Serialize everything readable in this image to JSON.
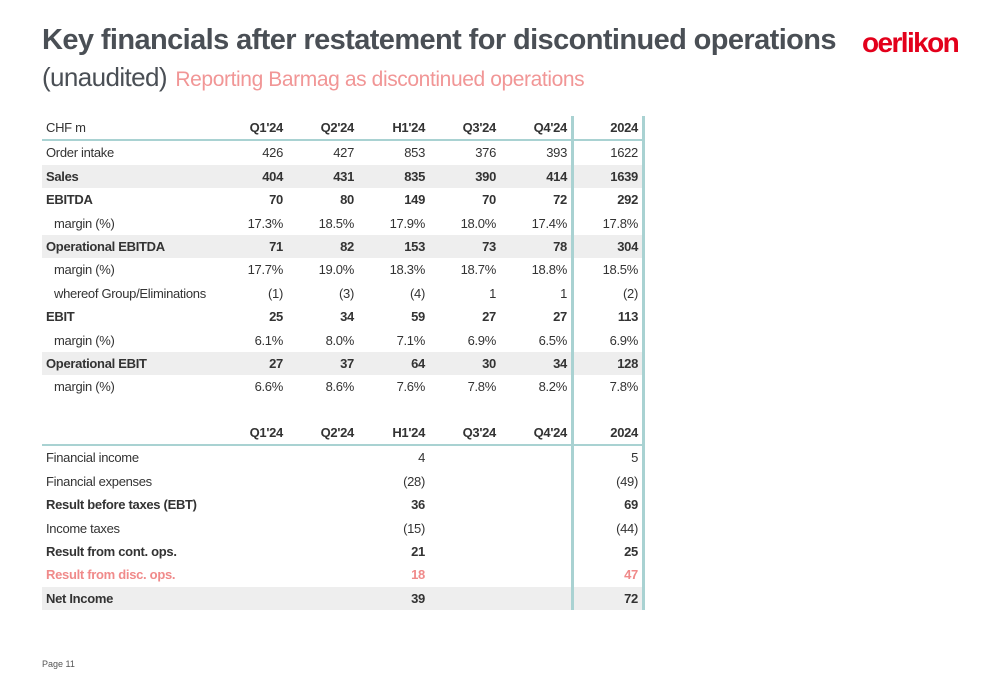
{
  "header": {
    "title": "Key financials after restatement for discontinued operations",
    "subtitle_main": "(unaudited)",
    "subtitle_accent": "Reporting Barmag as discontinued operations",
    "logo_text": "oerlikon"
  },
  "table1": {
    "columns": [
      "CHF m",
      "Q1'24",
      "Q2'24",
      "H1'24",
      "Q3'24",
      "Q4'24",
      "2024"
    ],
    "rows": [
      {
        "label": "Order intake",
        "values": [
          "426",
          "427",
          "853",
          "376",
          "393",
          "1622"
        ]
      },
      {
        "label": "Sales",
        "values": [
          "404",
          "431",
          "835",
          "390",
          "414",
          "1639"
        ]
      },
      {
        "label": "EBITDA",
        "values": [
          "70",
          "80",
          "149",
          "70",
          "72",
          "292"
        ]
      },
      {
        "label": "margin (%)",
        "values": [
          "17.3%",
          "18.5%",
          "17.9%",
          "18.0%",
          "17.4%",
          "17.8%"
        ]
      },
      {
        "label": "Operational EBITDA",
        "values": [
          "71",
          "82",
          "153",
          "73",
          "78",
          "304"
        ]
      },
      {
        "label": "margin (%)",
        "values": [
          "17.7%",
          "19.0%",
          "18.3%",
          "18.7%",
          "18.8%",
          "18.5%"
        ]
      },
      {
        "label": "whereof Group/Eliminations",
        "values": [
          "(1)",
          "(3)",
          "(4)",
          "1",
          "1",
          "(2)"
        ]
      },
      {
        "label": "EBIT",
        "values": [
          "25",
          "34",
          "59",
          "27",
          "27",
          "113"
        ]
      },
      {
        "label": "margin (%)",
        "values": [
          "6.1%",
          "8.0%",
          "7.1%",
          "6.9%",
          "6.5%",
          "6.9%"
        ]
      },
      {
        "label": "Operational EBIT",
        "values": [
          "27",
          "37",
          "64",
          "30",
          "34",
          "128"
        ]
      },
      {
        "label": "margin (%)",
        "values": [
          "6.6%",
          "8.6%",
          "7.6%",
          "7.8%",
          "8.2%",
          "7.8%"
        ]
      }
    ]
  },
  "table2": {
    "columns": [
      "",
      "Q1'24",
      "Q2'24",
      "H1'24",
      "Q3'24",
      "Q4'24",
      "2024"
    ],
    "rows": [
      {
        "label": "Financial income",
        "values": [
          "",
          "",
          "4",
          "",
          "",
          "5"
        ]
      },
      {
        "label": "Financial expenses",
        "values": [
          "",
          "",
          "(28)",
          "",
          "",
          "(49)"
        ]
      },
      {
        "label": "Result before taxes (EBT)",
        "values": [
          "",
          "",
          "36",
          "",
          "",
          "69"
        ]
      },
      {
        "label": "Income taxes",
        "values": [
          "",
          "",
          "(15)",
          "",
          "",
          "(44)"
        ]
      },
      {
        "label": "Result from cont. ops.",
        "values": [
          "",
          "",
          "21",
          "",
          "",
          "25"
        ]
      },
      {
        "label": "Result from disc. ops.",
        "values": [
          "",
          "",
          "18",
          "",
          "",
          "47"
        ]
      },
      {
        "label": "Net Income",
        "values": [
          "",
          "",
          "39",
          "",
          "",
          "72"
        ]
      }
    ]
  },
  "footer": {
    "page_label": "Page 11"
  },
  "colors": {
    "title": "#4a4f55",
    "accent": "#f19696",
    "logo": "#e3001b",
    "rule": "#a9d2d2",
    "shade": "#eeeeee"
  }
}
